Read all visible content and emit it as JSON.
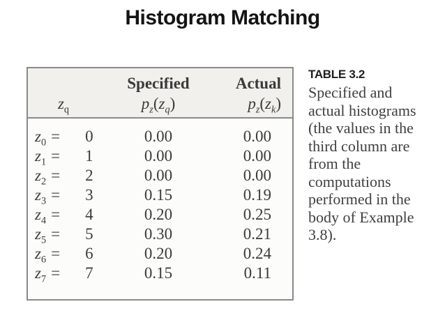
{
  "title": "Histogram Matching",
  "table": {
    "header": {
      "z": {
        "base": "z",
        "sub": "q"
      },
      "specified_label": "Specified",
      "actual_label": "Actual",
      "specified_formula": {
        "fn": "p",
        "fn_sub": "z",
        "open": "(",
        "arg": "z",
        "arg_sub": "q",
        "close": ")"
      },
      "actual_formula": {
        "fn": "p",
        "fn_sub": "z",
        "open": "(",
        "arg": "z",
        "arg_sub": "k",
        "close": ")"
      }
    },
    "rows": [
      {
        "var": "z",
        "var_sub": "0",
        "eq": "=",
        "value": "0",
        "specified": "0.00",
        "actual": "0.00"
      },
      {
        "var": "z",
        "var_sub": "1",
        "eq": "=",
        "value": "1",
        "specified": "0.00",
        "actual": "0.00"
      },
      {
        "var": "z",
        "var_sub": "2",
        "eq": "=",
        "value": "2",
        "specified": "0.00",
        "actual": "0.00"
      },
      {
        "var": "z",
        "var_sub": "3",
        "eq": "=",
        "value": "3",
        "specified": "0.15",
        "actual": "0.19"
      },
      {
        "var": "z",
        "var_sub": "4",
        "eq": "=",
        "value": "4",
        "specified": "0.20",
        "actual": "0.25"
      },
      {
        "var": "z",
        "var_sub": "5",
        "eq": "=",
        "value": "5",
        "specified": "0.30",
        "actual": "0.21"
      },
      {
        "var": "z",
        "var_sub": "6",
        "eq": "=",
        "value": "6",
        "specified": "0.20",
        "actual": "0.24"
      },
      {
        "var": "z",
        "var_sub": "7",
        "eq": "=",
        "value": "7",
        "specified": "0.15",
        "actual": "0.11"
      }
    ]
  },
  "caption": {
    "label": "TABLE 3.2",
    "lines": [
      "Specified and",
      "actual histograms",
      "(the values in the",
      "third column are",
      "from the",
      "computations",
      "performed in the",
      "body of Example",
      "3.8)."
    ]
  },
  "colors": {
    "table_border": "#8a8a8a",
    "header_background": "#f1f0ec",
    "text": "#3c3a38"
  }
}
